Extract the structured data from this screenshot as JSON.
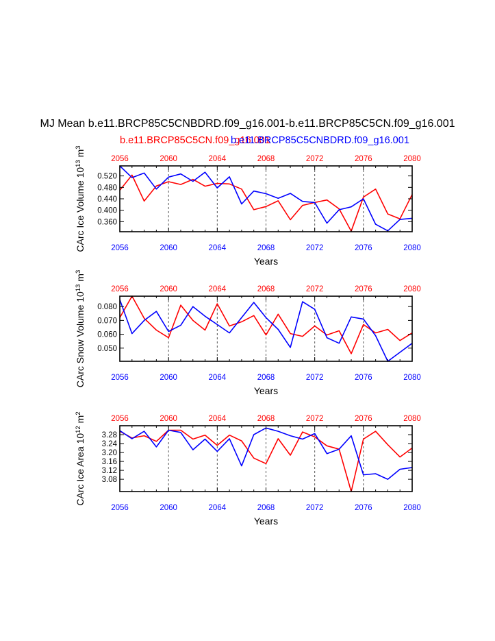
{
  "title": "MJ Mean b.e11.BRCP85C5CNBDRD.f09_g16.001-b.e11.BRCP85C5CN.f09_g16.001",
  "legend": {
    "red_label": "b.e11.BRCP85C5CN.f09_g16.001",
    "blue_label": "b.e11.BRCP85C5CNBDRD.f09_g16.001"
  },
  "colors": {
    "red": "#ff0000",
    "blue": "#0000ff",
    "axis": "#000000",
    "grid": "#555555"
  },
  "chart_data": [
    {
      "type": "line",
      "name": "ice-volume",
      "ylabel": "CArc Ice Volume 10",
      "ylabel_exp": "13",
      "ylabel_unit": " m",
      "ylabel_unit_exp": "3",
      "xlabel": "Years",
      "xlim": [
        2056,
        2080
      ],
      "ylim": [
        0.325,
        0.555
      ],
      "x_ticks": [
        2056,
        2060,
        2064,
        2068,
        2072,
        2076,
        2080
      ],
      "y_ticks": [
        0.36,
        0.4,
        0.44,
        0.48,
        0.52
      ],
      "y_tick_labels": [
        "0.360",
        "0.400",
        "0.440",
        "0.480",
        "0.520"
      ],
      "grid_x": [
        2060,
        2064,
        2068,
        2072,
        2076
      ],
      "x": [
        2056,
        2057,
        2058,
        2059,
        2060,
        2061,
        2062,
        2063,
        2064,
        2065,
        2066,
        2067,
        2068,
        2069,
        2070,
        2071,
        2072,
        2073,
        2074,
        2075,
        2076,
        2077,
        2078,
        2079,
        2080
      ],
      "series": [
        {
          "name": "b.e11.BRCP85C5CN.f09_g16.001",
          "color": "red",
          "values": [
            0.47,
            0.523,
            0.432,
            0.485,
            0.5,
            0.49,
            0.508,
            0.484,
            0.494,
            0.492,
            0.474,
            0.402,
            0.413,
            0.433,
            0.367,
            0.417,
            0.427,
            0.436,
            0.405,
            0.327,
            0.446,
            0.474,
            0.387,
            0.37,
            0.455
          ]
        },
        {
          "name": "b.e11.BRCP85C5CNBDRD.f09_g16.001",
          "color": "blue",
          "values": [
            0.555,
            0.514,
            0.53,
            0.474,
            0.516,
            0.527,
            0.501,
            0.533,
            0.478,
            0.517,
            0.422,
            0.467,
            0.458,
            0.442,
            0.459,
            0.431,
            0.427,
            0.355,
            0.402,
            0.412,
            0.44,
            0.351,
            0.328,
            0.368,
            0.372
          ]
        }
      ]
    },
    {
      "type": "line",
      "name": "snow-volume",
      "ylabel": "CArc Snow Volume 10",
      "ylabel_exp": "13",
      "ylabel_unit": " m",
      "ylabel_unit_exp": "3",
      "xlabel": "Years",
      "xlim": [
        2056,
        2080
      ],
      "ylim": [
        0.0405,
        0.0875
      ],
      "x_ticks": [
        2056,
        2060,
        2064,
        2068,
        2072,
        2076,
        2080
      ],
      "y_ticks": [
        0.05,
        0.06,
        0.07,
        0.08
      ],
      "y_tick_labels": [
        "0.050",
        "0.060",
        "0.070",
        "0.080"
      ],
      "grid_x": [
        2060,
        2064,
        2068,
        2072,
        2076
      ],
      "x": [
        2056,
        2057,
        2058,
        2059,
        2060,
        2061,
        2062,
        2063,
        2064,
        2065,
        2066,
        2067,
        2068,
        2069,
        2070,
        2071,
        2072,
        2073,
        2074,
        2075,
        2076,
        2077,
        2078,
        2079,
        2080
      ],
      "series": [
        {
          "name": "b.e11.BRCP85C5CN.f09_g16.001",
          "color": "red",
          "values": [
            0.072,
            0.0875,
            0.0715,
            0.063,
            0.0575,
            0.081,
            0.07,
            0.063,
            0.082,
            0.066,
            0.069,
            0.0735,
            0.0595,
            0.0745,
            0.0605,
            0.0585,
            0.066,
            0.0595,
            0.0625,
            0.046,
            0.067,
            0.061,
            0.0635,
            0.0555,
            0.061
          ]
        },
        {
          "name": "b.e11.BRCP85C5CNBDRD.f09_g16.001",
          "color": "blue",
          "values": [
            0.085,
            0.0605,
            0.07,
            0.0765,
            0.062,
            0.0665,
            0.08,
            0.073,
            0.067,
            0.061,
            0.072,
            0.083,
            0.072,
            0.0635,
            0.0505,
            0.0835,
            0.078,
            0.0575,
            0.0535,
            0.0725,
            0.071,
            0.059,
            0.0405,
            0.047,
            0.0535
          ]
        }
      ]
    },
    {
      "type": "line",
      "name": "ice-area",
      "ylabel": "CArc Ice Area 10",
      "ylabel_exp": "12",
      "ylabel_unit": " m",
      "ylabel_unit_exp": "2",
      "xlabel": "Years",
      "xlim": [
        2056,
        2080
      ],
      "ylim": [
        3.025,
        3.32
      ],
      "x_ticks": [
        2056,
        2060,
        2064,
        2068,
        2072,
        2076,
        2080
      ],
      "y_ticks": [
        3.08,
        3.12,
        3.16,
        3.2,
        3.24,
        3.28
      ],
      "y_tick_labels": [
        "3.08",
        "3.12",
        "3.16",
        "3.20",
        "3.24",
        "3.28"
      ],
      "grid_x": [
        2060,
        2064,
        2068,
        2072,
        2076
      ],
      "x": [
        2056,
        2057,
        2058,
        2059,
        2060,
        2061,
        2062,
        2063,
        2064,
        2065,
        2066,
        2067,
        2068,
        2069,
        2070,
        2071,
        2072,
        2073,
        2074,
        2075,
        2076,
        2077,
        2078,
        2079,
        2080
      ],
      "series": [
        {
          "name": "b.e11.BRCP85C5CN.f09_g16.001",
          "color": "red",
          "values": [
            3.295,
            3.265,
            3.275,
            3.25,
            3.3,
            3.3,
            3.26,
            3.278,
            3.232,
            3.278,
            3.252,
            3.175,
            3.15,
            3.262,
            3.188,
            3.292,
            3.27,
            3.23,
            3.215,
            3.025,
            3.26,
            3.295,
            3.235,
            3.18,
            3.22
          ]
        },
        {
          "name": "b.e11.BRCP85C5CNBDRD.f09_g16.001",
          "color": "blue",
          "values": [
            3.298,
            3.262,
            3.295,
            3.225,
            3.3,
            3.29,
            3.212,
            3.26,
            3.205,
            3.262,
            3.14,
            3.28,
            3.31,
            3.295,
            3.275,
            3.26,
            3.285,
            3.195,
            3.215,
            3.275,
            3.1,
            3.105,
            3.08,
            3.125,
            3.133
          ]
        }
      ]
    }
  ]
}
